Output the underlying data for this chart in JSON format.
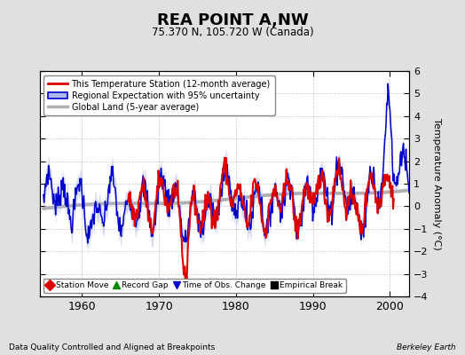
{
  "title": "REA POINT A,NW",
  "subtitle": "75.370 N, 105.720 W (Canada)",
  "ylabel": "Temperature Anomaly (°C)",
  "footer_left": "Data Quality Controlled and Aligned at Breakpoints",
  "footer_right": "Berkeley Earth",
  "xlim": [
    1954.5,
    2002.5
  ],
  "ylim": [
    -4,
    6
  ],
  "yticks": [
    -4,
    -3,
    -2,
    -1,
    0,
    1,
    2,
    3,
    4,
    5,
    6
  ],
  "xticks": [
    1960,
    1970,
    1980,
    1990,
    2000
  ],
  "bg_color": "#e0e0e0",
  "plot_bg_color": "#ffffff",
  "grid_color": "#c8c8c8",
  "red_color": "#dd0000",
  "blue_color": "#0000cc",
  "blue_fill_color": "#b0b8e8",
  "gray_color": "#b0b0b0",
  "legend1_items": [
    {
      "label": "This Temperature Station (12-month average)"
    },
    {
      "label": "Regional Expectation with 95% uncertainty"
    },
    {
      "label": "Global Land (5-year average)"
    }
  ],
  "legend2_items": [
    {
      "label": "Station Move",
      "marker": "D",
      "color": "#dd0000"
    },
    {
      "label": "Record Gap",
      "marker": "^",
      "color": "#008800"
    },
    {
      "label": "Time of Obs. Change",
      "marker": "v",
      "color": "#0000cc"
    },
    {
      "label": "Empirical Break",
      "marker": "s",
      "color": "#000000"
    }
  ]
}
